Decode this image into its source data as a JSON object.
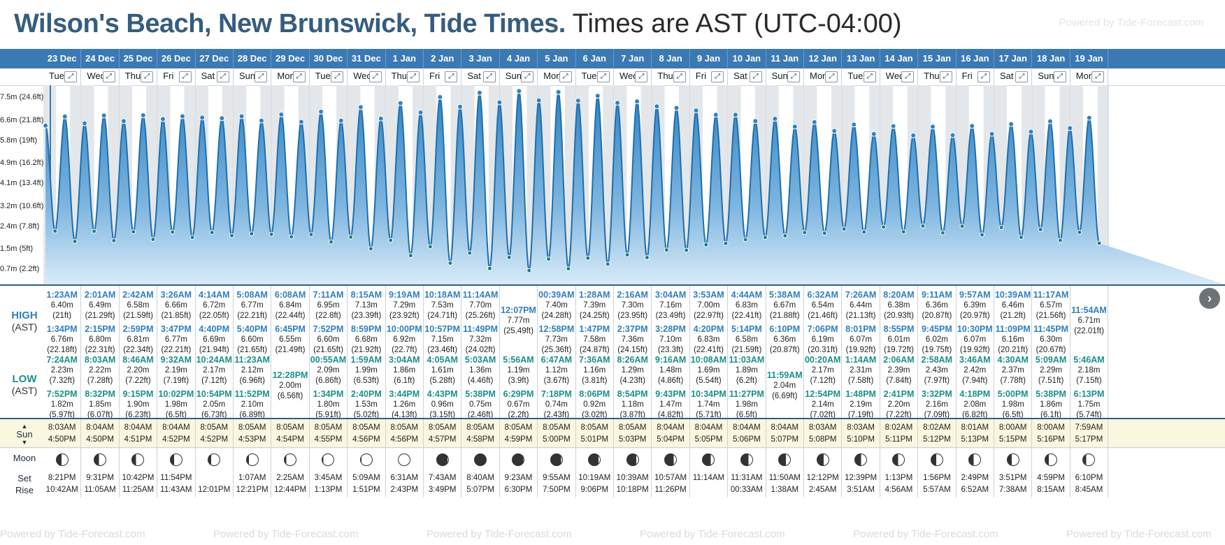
{
  "header": {
    "title_bold": "Wilson's Beach, New Brunswick, Tide Times.",
    "title_tz": "Times are AST (UTC-04:00)",
    "powered": "Powered by Tide-Forecast.com"
  },
  "row_labels": {
    "high": "HIGH",
    "high_sub": "(AST)",
    "low": "LOW",
    "low_sub": "(AST)",
    "sun": "Sun",
    "moon": "Moon",
    "set": "Set",
    "rise": "Rise"
  },
  "y_axis_labels": [
    "7.5m (24.6ft)",
    "6.6m (21.8ft)",
    "5.8m (19ft)",
    "4.9m (16.2ft)",
    "4.1m (13.4ft)",
    "3.2m (10.6ft)",
    "2.4m (7.8ft)",
    "1.5m (5ft)",
    "0.7m (2.2ft)"
  ],
  "days": [
    {
      "date": "23 Dec",
      "dow": "Tue",
      "h1": "1:23AM",
      "h1m": "6.40m",
      "h1f": "(21ft)",
      "h2": "1:34PM",
      "h2m": "6.76m",
      "h2f": "(22.18ft)",
      "l1": "7:24AM",
      "l1m": "2.23m",
      "l1f": "(7.32ft)",
      "l2": "7:52PM",
      "l2m": "1.82m",
      "l2f": "(5.97ft)",
      "sunrise": "8:03AM",
      "sunset": "4:50PM",
      "mset": "8:21PM",
      "mrise": "10:42AM"
    },
    {
      "date": "24 Dec",
      "dow": "Wed",
      "h1": "2:01AM",
      "h1m": "6.49m",
      "h1f": "(21.29ft)",
      "h2": "2:15PM",
      "h2m": "6.80m",
      "h2f": "(22.31ft)",
      "l1": "8:03AM",
      "l1m": "2.22m",
      "l1f": "(7.28ft)",
      "l2": "8:32PM",
      "l2m": "1.85m",
      "l2f": "(6.07ft)",
      "sunrise": "8:04AM",
      "sunset": "4:50PM",
      "mset": "9:31PM",
      "mrise": "11:05AM"
    },
    {
      "date": "25 Dec",
      "dow": "Thu",
      "h1": "2:42AM",
      "h1m": "6.58m",
      "h1f": "(21.59ft)",
      "h2": "2:59PM",
      "h2m": "6.81m",
      "h2f": "(22.34ft)",
      "l1": "8:46AM",
      "l1m": "2.20m",
      "l1f": "(7.22ft)",
      "l2": "9:15PM",
      "l2m": "1.90m",
      "l2f": "(6.23ft)",
      "sunrise": "8:04AM",
      "sunset": "4:51PM",
      "mset": "10:42PM",
      "mrise": "11:25AM"
    },
    {
      "date": "26 Dec",
      "dow": "Fri",
      "h1": "3:26AM",
      "h1m": "6.66m",
      "h1f": "(21.85ft)",
      "h2": "3:47PM",
      "h2m": "6.77m",
      "h2f": "(22.21ft)",
      "l1": "9:32AM",
      "l1m": "2.19m",
      "l1f": "(7.19ft)",
      "l2": "10:02PM",
      "l2m": "1.98m",
      "l2f": "(6.5ft)",
      "sunrise": "8:04AM",
      "sunset": "4:52PM",
      "mset": "11:54PM",
      "mrise": "11:43AM"
    },
    {
      "date": "27 Dec",
      "dow": "Sat",
      "h1": "4:14AM",
      "h1m": "6.72m",
      "h1f": "(22.05ft)",
      "h2": "4:40PM",
      "h2m": "6.69m",
      "h2f": "(21.94ft)",
      "l1": "10:24AM",
      "l1m": "2.17m",
      "l1f": "(7.12ft)",
      "l2": "10:54PM",
      "l2m": "2.05m",
      "l2f": "(6.73ft)",
      "sunrise": "8:05AM",
      "sunset": "4:52PM",
      "mset": "",
      "mrise": "12:01PM"
    },
    {
      "date": "28 Dec",
      "dow": "Sun",
      "h1": "5:08AM",
      "h1m": "6.77m",
      "h1f": "(22.21ft)",
      "h2": "5:40PM",
      "h2m": "6.60m",
      "h2f": "(21.65ft)",
      "l1": "11:23AM",
      "l1m": "2.12m",
      "l1f": "(6.96ft)",
      "l2": "11:52PM",
      "l2m": "2.10m",
      "l2f": "(6.89ft)",
      "sunrise": "8:05AM",
      "sunset": "4:53PM",
      "mset": "1:07AM",
      "mrise": "12:21PM"
    },
    {
      "date": "29 Dec",
      "dow": "Mon",
      "h1": "6:08AM",
      "h1m": "6.84m",
      "h1f": "(22.44ft)",
      "h2": "6:45PM",
      "h2m": "6.55m",
      "h2f": "(21.49ft)",
      "l1": "",
      "l1m": "",
      "l1f": "",
      "l2": "12:28PM",
      "l2m": "2.00m",
      "l2f": "(6.56ft)",
      "sunrise": "8:05AM",
      "sunset": "4:54PM",
      "mset": "2:25AM",
      "mrise": "12:44PM"
    },
    {
      "date": "30 Dec",
      "dow": "Tue",
      "h1": "7:11AM",
      "h1m": "6.95m",
      "h1f": "(22.8ft)",
      "h2": "7:52PM",
      "h2m": "6.60m",
      "h2f": "(21.65ft)",
      "l1": "00:55AM",
      "l1m": "2.09m",
      "l1f": "(6.86ft)",
      "l2": "1:34PM",
      "l2m": "1.80m",
      "l2f": "(5.91ft)",
      "sunrise": "8:05AM",
      "sunset": "4:55PM",
      "mset": "3:45AM",
      "mrise": "1:13PM"
    },
    {
      "date": "31 Dec",
      "dow": "Wed",
      "h1": "8:15AM",
      "h1m": "7.13m",
      "h1f": "(23.39ft)",
      "h2": "8:59PM",
      "h2m": "6.68m",
      "h2f": "(21.92ft)",
      "l1": "1:59AM",
      "l1m": "1.99m",
      "l1f": "(6.53ft)",
      "l2": "2:40PM",
      "l2m": "1.53m",
      "l2f": "(5.02ft)",
      "sunrise": "8:05AM",
      "sunset": "4:56PM",
      "mset": "5:09AM",
      "mrise": "1:51PM"
    },
    {
      "date": "1 Jan",
      "dow": "Thu",
      "h1": "9:19AM",
      "h1m": "7.29m",
      "h1f": "(23.92ft)",
      "h2": "10:00PM",
      "h2m": "6.92m",
      "h2f": "(22.7ft)",
      "l1": "3:04AM",
      "l1m": "1.86m",
      "l1f": "(6.1ft)",
      "l2": "3:44PM",
      "l2m": "1.26m",
      "l2f": "(4.13ft)",
      "sunrise": "8:05AM",
      "sunset": "4:56PM",
      "mset": "6:31AM",
      "mrise": "2:43PM"
    },
    {
      "date": "2 Jan",
      "dow": "Fri",
      "h1": "10:18AM",
      "h1m": "7.53m",
      "h1f": "(24.71ft)",
      "h2": "10:57PM",
      "h2m": "7.15m",
      "h2f": "(23.46ft)",
      "l1": "4:05AM",
      "l1m": "1.61m",
      "l1f": "(5.28ft)",
      "l2": "4:43PM",
      "l2m": "0.96m",
      "l2f": "(3.15ft)",
      "sunrise": "8:05AM",
      "sunset": "4:57PM",
      "mset": "7:43AM",
      "mrise": "3:49PM"
    },
    {
      "date": "3 Jan",
      "dow": "Sat",
      "h1": "11:14AM",
      "h1m": "7.70m",
      "h1f": "(25.26ft)",
      "h2": "11:49PM",
      "h2m": "7.32m",
      "h2f": "(24.02ft)",
      "l1": "5:03AM",
      "l1m": "1.36m",
      "l1f": "(4.46ft)",
      "l2": "5:38PM",
      "l2m": "0.75m",
      "l2f": "(2.46ft)",
      "sunrise": "8:05AM",
      "sunset": "4:58PM",
      "mset": "8:40AM",
      "mrise": "5:07PM"
    },
    {
      "date": "4 Jan",
      "dow": "Sun",
      "h1": "12:07PM",
      "h1m": "7.77m",
      "h1f": "(25.49ft)",
      "h2": "",
      "h2m": "",
      "h2f": "",
      "l1": "5:56AM",
      "l1m": "1.19m",
      "l1f": "(3.9ft)",
      "l2": "6:29PM",
      "l2m": "0.67m",
      "l2f": "(2.2ft)",
      "sunrise": "8:05AM",
      "sunset": "4:59PM",
      "mset": "9:23AM",
      "mrise": "6:30PM"
    },
    {
      "date": "5 Jan",
      "dow": "Mon",
      "h1": "00:39AM",
      "h1m": "7.40m",
      "h1f": "(24.28ft)",
      "h2": "12:58PM",
      "h2m": "7.73m",
      "h2f": "(25.36ft)",
      "l1": "6:47AM",
      "l1m": "1.12m",
      "l1f": "(3.67ft)",
      "l2": "7:18PM",
      "l2m": "0.74m",
      "l2f": "(2.43ft)",
      "sunrise": "8:05AM",
      "sunset": "5:00PM",
      "mset": "9:55AM",
      "mrise": "7:50PM"
    },
    {
      "date": "6 Jan",
      "dow": "Tue",
      "h1": "1:28AM",
      "h1m": "7.39m",
      "h1f": "(24.25ft)",
      "h2": "1:47PM",
      "h2m": "7.58m",
      "h2f": "(24.87ft)",
      "l1": "7:36AM",
      "l1m": "1.16m",
      "l1f": "(3.81ft)",
      "l2": "8:06PM",
      "l2m": "0.92m",
      "l2f": "(3.02ft)",
      "sunrise": "8:05AM",
      "sunset": "5:01PM",
      "mset": "10:19AM",
      "mrise": "9:06PM"
    },
    {
      "date": "7 Jan",
      "dow": "Wed",
      "h1": "2:16AM",
      "h1m": "7.30m",
      "h1f": "(23.95ft)",
      "h2": "2:37PM",
      "h2m": "7.36m",
      "h2f": "(24.15ft)",
      "l1": "8:26AM",
      "l1m": "1.29m",
      "l1f": "(4.23ft)",
      "l2": "8:54PM",
      "l2m": "1.18m",
      "l2f": "(3.87ft)",
      "sunrise": "8:05AM",
      "sunset": "5:03PM",
      "mset": "10:39AM",
      "mrise": "10:18PM"
    },
    {
      "date": "8 Jan",
      "dow": "Thu",
      "h1": "3:04AM",
      "h1m": "7.16m",
      "h1f": "(23.49ft)",
      "h2": "3:28PM",
      "h2m": "7.10m",
      "h2f": "(23.3ft)",
      "l1": "9:16AM",
      "l1m": "1.48m",
      "l1f": "(4.86ft)",
      "l2": "9:43PM",
      "l2m": "1.47m",
      "l2f": "(4.82ft)",
      "sunrise": "8:04AM",
      "sunset": "5:04PM",
      "mset": "10:57AM",
      "mrise": "11:26PM"
    },
    {
      "date": "9 Jan",
      "dow": "Fri",
      "h1": "3:53AM",
      "h1m": "7.00m",
      "h1f": "(22.97ft)",
      "h2": "4:20PM",
      "h2m": "6.83m",
      "h2f": "(22.41ft)",
      "l1": "10:08AM",
      "l1m": "1.69m",
      "l1f": "(5.54ft)",
      "l2": "10:34PM",
      "l2m": "1.74m",
      "l2f": "(5.71ft)",
      "sunrise": "8:04AM",
      "sunset": "5:05PM",
      "mset": "11:14AM",
      "mrise": ""
    },
    {
      "date": "10 Jan",
      "dow": "Sat",
      "h1": "4:44AM",
      "h1m": "6.83m",
      "h1f": "(22.41ft)",
      "h2": "5:14PM",
      "h2m": "6.58m",
      "h2f": "(21.59ft)",
      "l1": "11:03AM",
      "l1m": "1.89m",
      "l1f": "(6.2ft)",
      "l2": "11:27PM",
      "l2m": "1.98m",
      "l2f": "(6.5ft)",
      "sunrise": "8:04AM",
      "sunset": "5:06PM",
      "mset": "11:31AM",
      "mrise": "00:33AM"
    },
    {
      "date": "11 Jan",
      "dow": "Sun",
      "h1": "5:38AM",
      "h1m": "6.67m",
      "h1f": "(21.88ft)",
      "h2": "6:10PM",
      "h2m": "6.36m",
      "h2f": "(20.87ft)",
      "l1": "",
      "l1m": "",
      "l1f": "",
      "l2": "11:59AM",
      "l2m": "2.04m",
      "l2f": "(6.69ft)",
      "sunrise": "8:04AM",
      "sunset": "5:07PM",
      "mset": "11:50AM",
      "mrise": "1:38AM"
    },
    {
      "date": "12 Jan",
      "dow": "Mon",
      "h1": "6:32AM",
      "h1m": "6.54m",
      "h1f": "(21.46ft)",
      "h2": "7:06PM",
      "h2m": "6.19m",
      "h2f": "(20.31ft)",
      "l1": "00:20AM",
      "l1m": "2.17m",
      "l1f": "(7.12ft)",
      "l2": "12:54PM",
      "l2m": "2.14m",
      "l2f": "(7.02ft)",
      "sunrise": "8:03AM",
      "sunset": "5:08PM",
      "mset": "12:12PM",
      "mrise": "2:45AM"
    },
    {
      "date": "13 Jan",
      "dow": "Tue",
      "h1": "7:26AM",
      "h1m": "6.44m",
      "h1f": "(21.13ft)",
      "h2": "8:01PM",
      "h2m": "6.07m",
      "h2f": "(19.92ft)",
      "l1": "1:14AM",
      "l1m": "2.31m",
      "l1f": "(7.58ft)",
      "l2": "1:48PM",
      "l2m": "2.19m",
      "l2f": "(7.19ft)",
      "sunrise": "8:03AM",
      "sunset": "5:10PM",
      "mset": "12:39PM",
      "mrise": "3:51AM"
    },
    {
      "date": "14 Jan",
      "dow": "Wed",
      "h1": "8:20AM",
      "h1m": "6.38m",
      "h1f": "(20.93ft)",
      "h2": "8:55PM",
      "h2m": "6.01m",
      "h2f": "(19.72ft)",
      "l1": "2:06AM",
      "l1m": "2.39m",
      "l1f": "(7.84ft)",
      "l2": "2:41PM",
      "l2m": "2.20m",
      "l2f": "(7.22ft)",
      "sunrise": "8:02AM",
      "sunset": "5:11PM",
      "mset": "1:13PM",
      "mrise": "4:56AM"
    },
    {
      "date": "15 Jan",
      "dow": "Thu",
      "h1": "9:11AM",
      "h1m": "6.36m",
      "h1f": "(20.87ft)",
      "h2": "9:45PM",
      "h2m": "6.02m",
      "h2f": "(19.75ft)",
      "l1": "2:58AM",
      "l1m": "2.43m",
      "l1f": "(7.97ft)",
      "l2": "3:32PM",
      "l2m": "2.16m",
      "l2f": "(7.09ft)",
      "sunrise": "8:02AM",
      "sunset": "5:12PM",
      "mset": "1:56PM",
      "mrise": "5:57AM"
    },
    {
      "date": "16 Jan",
      "dow": "Fri",
      "h1": "9:57AM",
      "h1m": "6.39m",
      "h1f": "(20.97ft)",
      "h2": "10:30PM",
      "h2m": "6.07m",
      "h2f": "(19.92ft)",
      "l1": "3:46AM",
      "l1m": "2.42m",
      "l1f": "(7.94ft)",
      "l2": "4:18PM",
      "l2m": "2.08m",
      "l2f": "(6.82ft)",
      "sunrise": "8:01AM",
      "sunset": "5:13PM",
      "mset": "2:49PM",
      "mrise": "6:52AM"
    },
    {
      "date": "17 Jan",
      "dow": "Sat",
      "h1": "10:39AM",
      "h1m": "6.46m",
      "h1f": "(21.2ft)",
      "h2": "11:09PM",
      "h2m": "6.16m",
      "h2f": "(20.21ft)",
      "l1": "4:30AM",
      "l1m": "2.37m",
      "l1f": "(7.78ft)",
      "l2": "5:00PM",
      "l2m": "1.98m",
      "l2f": "(6.5ft)",
      "sunrise": "8:00AM",
      "sunset": "5:15PM",
      "mset": "3:51PM",
      "mrise": "7:38AM"
    },
    {
      "date": "18 Jan",
      "dow": "Sun",
      "h1": "11:17AM",
      "h1m": "6.57m",
      "h1f": "(21.56ft)",
      "h2": "11:45PM",
      "h2m": "6.30m",
      "h2f": "(20.67ft)",
      "l1": "5:09AM",
      "l1m": "2.29m",
      "l1f": "(7.51ft)",
      "l2": "5:38PM",
      "l2m": "1.86m",
      "l2f": "(6.1ft)",
      "sunrise": "8:00AM",
      "sunset": "5:16PM",
      "mset": "4:59PM",
      "mrise": "8:15AM"
    },
    {
      "date": "19 Jan",
      "dow": "Mon",
      "h1": "11:54AM",
      "h1m": "6.71m",
      "h1f": "(22.01ft)",
      "h2": "",
      "h2m": "",
      "h2f": "",
      "l1": "5:46AM",
      "l1m": "2.18m",
      "l1f": "(7.15ft)",
      "l2": "6:13PM",
      "l2m": "1.75m",
      "l2f": "(5.74ft)",
      "sunrise": "7:59AM",
      "sunset": "5:17PM",
      "mset": "6:10PM",
      "mrise": "8:45AM"
    }
  ]
}
